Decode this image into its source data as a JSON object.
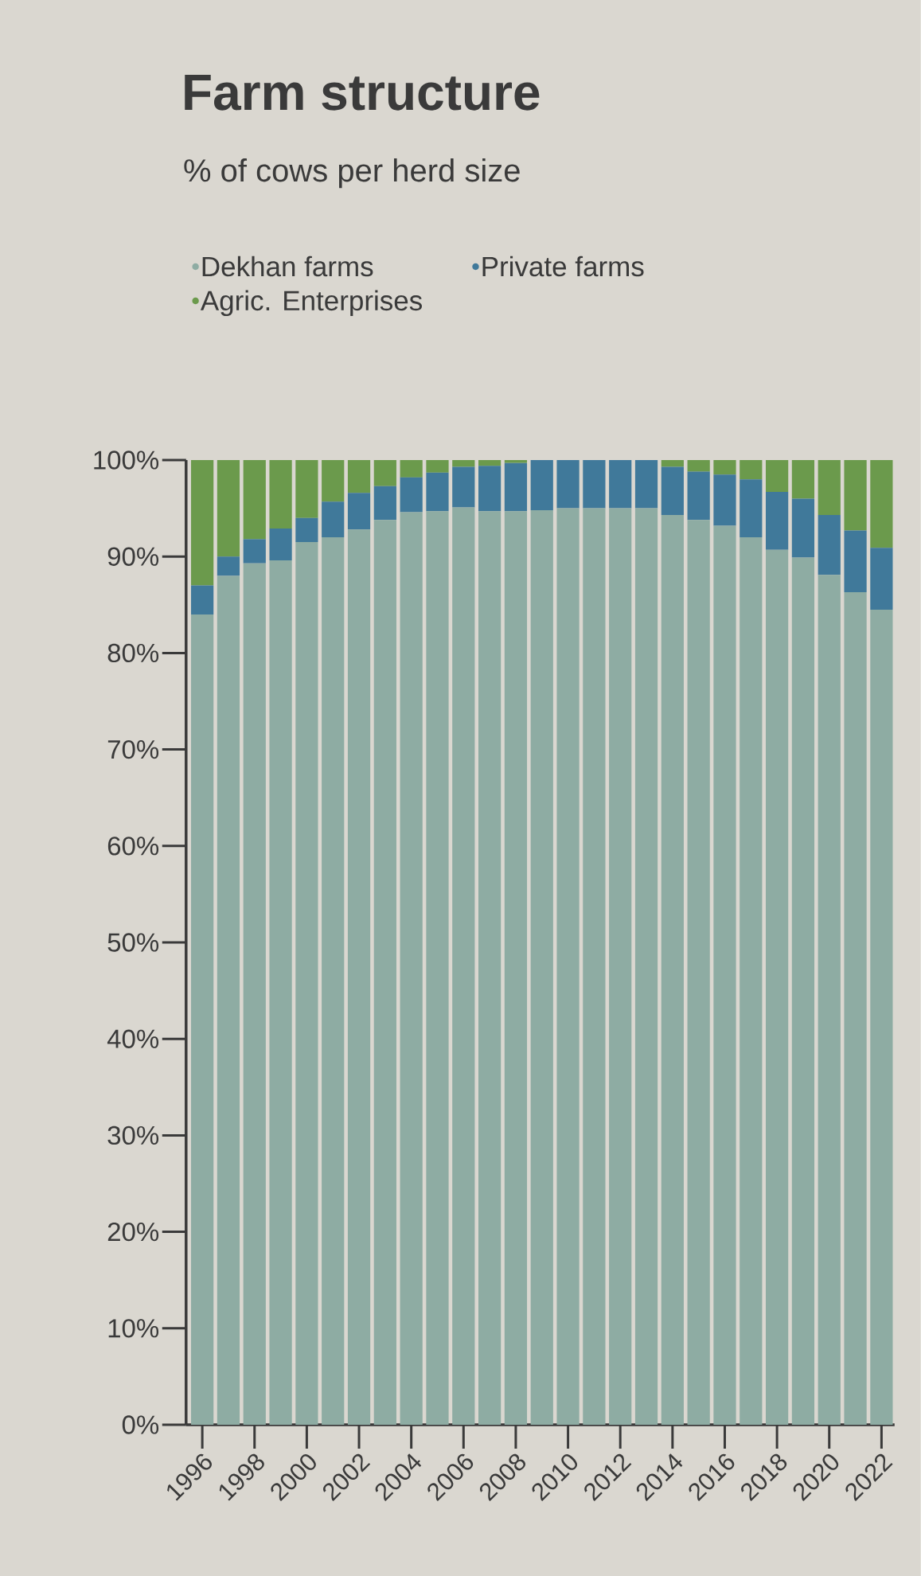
{
  "chart_data": {
    "type": "bar",
    "title": "Farm structure",
    "subtitle": "% of cows per herd size",
    "stacked": true,
    "categories": [
      "1996",
      null,
      "1998",
      null,
      "2000",
      null,
      "2002",
      null,
      "2004",
      null,
      "2006",
      null,
      "2008",
      null,
      "2010",
      null,
      "2012",
      null,
      "2014",
      null,
      "2016",
      null,
      "2018",
      null,
      "2020",
      null,
      "2022"
    ],
    "series": [
      {
        "name": "Dekhan farms",
        "color": "#8eaca3",
        "values": [
          84,
          88,
          89.3,
          89.6,
          91.5,
          92,
          92.8,
          93.8,
          94.6,
          94.7,
          95.1,
          94.7,
          94.7,
          94.8,
          95,
          95,
          95,
          95,
          94.3,
          93.8,
          93.2,
          92,
          90.7,
          89.9,
          88.1,
          86.3,
          84.5
        ]
      },
      {
        "name": "Private farms",
        "color": "#40799a",
        "values": [
          3,
          2,
          2.5,
          3.3,
          2.5,
          3.7,
          3.8,
          3.5,
          3.6,
          4,
          4.2,
          4.7,
          5,
          5.2,
          5,
          5,
          5,
          5,
          5,
          5,
          5.3,
          6,
          6,
          6.1,
          6.2,
          6.4,
          6.4
        ]
      },
      {
        "name": "Agric. Enterprises",
        "color": "#6b9a4c",
        "values": [
          13,
          10,
          8.2,
          7.1,
          6,
          4.3,
          3.4,
          2.7,
          1.8,
          1.3,
          0.7,
          0.6,
          0.3,
          0,
          0,
          0,
          0,
          0,
          0.7,
          1.2,
          1.5,
          2,
          3.3,
          4,
          5.7,
          7.3,
          9.1
        ]
      }
    ],
    "ylim": [
      0,
      100
    ],
    "yticks": [
      {
        "value": 0,
        "label": "0%"
      },
      {
        "value": 10,
        "label": "10%"
      },
      {
        "value": 20,
        "label": "20%"
      },
      {
        "value": 30,
        "label": "30%"
      },
      {
        "value": 40,
        "label": "40%"
      },
      {
        "value": 50,
        "label": "50%"
      },
      {
        "value": 60,
        "label": "60%"
      },
      {
        "value": 70,
        "label": "70%"
      },
      {
        "value": 80,
        "label": "80%"
      },
      {
        "value": 90,
        "label": "90%"
      },
      {
        "value": 100,
        "label": "100%"
      }
    ],
    "legend": "top"
  }
}
